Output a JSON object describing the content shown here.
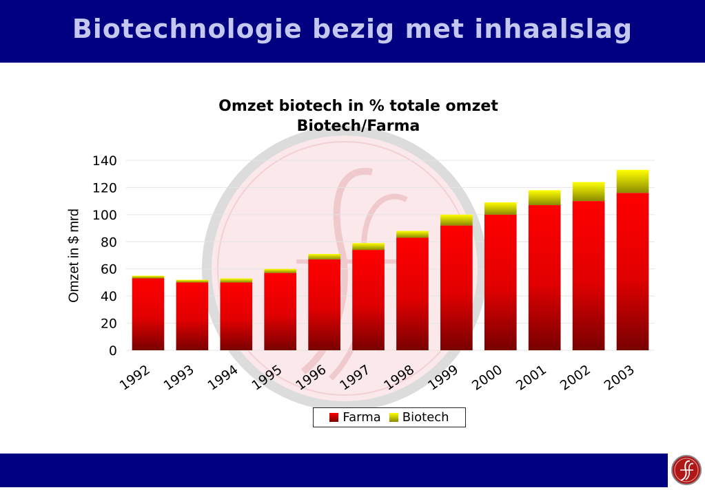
{
  "slide": {
    "title": "Biotechnologie bezig met inhaalslag"
  },
  "colors": {
    "banner": "#000080",
    "title_text": "#c4c8f0",
    "farma": "#e00000",
    "biotech": "#e8e800"
  },
  "icons": {
    "logo": "script-f-logo-icon"
  },
  "chart_data": {
    "type": "bar",
    "stacked": true,
    "title_lines": [
      "Omzet biotech in % totale omzet",
      "Biotech/Farma"
    ],
    "ylabel": "Omzet in $ mrd",
    "xlabel": "",
    "ylim": [
      0,
      140
    ],
    "yticks": [
      0,
      20,
      40,
      60,
      80,
      100,
      120,
      140
    ],
    "categories": [
      "1992",
      "1993",
      "1994",
      "1995",
      "1996",
      "1997",
      "1998",
      "1999",
      "2000",
      "2001",
      "2002",
      "2003"
    ],
    "series": [
      {
        "name": "Farma",
        "color": "#e00000",
        "values": [
          53,
          50,
          50,
          57,
          67,
          74,
          83,
          92,
          100,
          107,
          110,
          116
        ]
      },
      {
        "name": "Biotech",
        "color": "#e8e800",
        "values": [
          2,
          2,
          3,
          3,
          4,
          5,
          5,
          8,
          9,
          11,
          14,
          17
        ]
      }
    ],
    "legend_position": "bottom",
    "grid": true
  }
}
